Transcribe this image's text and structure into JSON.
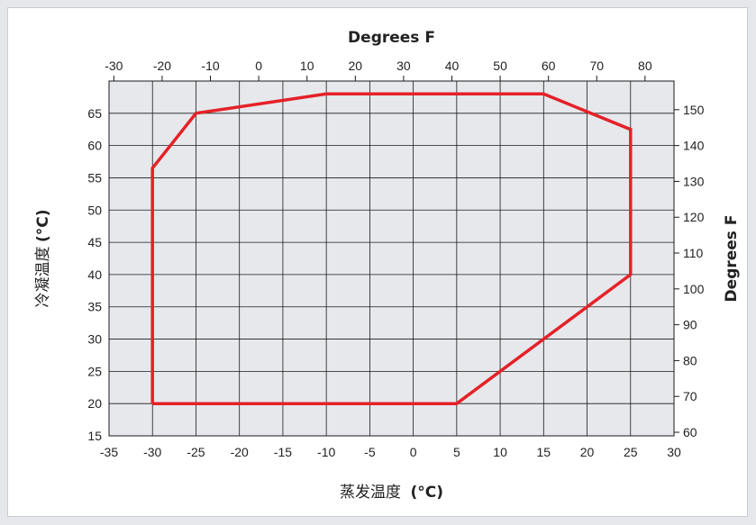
{
  "colors": {
    "page_background": "#e5e7ea",
    "plot_background": "#e6e8ec",
    "grid": "#1a1a1a",
    "envelope": "#e42228"
  },
  "chart_data": {
    "type": "line",
    "title": "",
    "xlabel": "蒸发温度",
    "xlabel_unit": "(°C)",
    "ylabel": "冷凝温度",
    "ylabel_unit": "(°C)",
    "top_axis_label": "Degrees F",
    "right_axis_label": "Degrees F",
    "grid": true,
    "xlim": [
      -35,
      30
    ],
    "ylim": [
      15,
      70
    ],
    "x_ticks": [
      -35,
      -30,
      -25,
      -20,
      -15,
      -10,
      -5,
      0,
      5,
      10,
      15,
      20,
      25,
      30
    ],
    "y_ticks": [
      15,
      20,
      25,
      30,
      35,
      40,
      45,
      50,
      55,
      60,
      65
    ],
    "top_ticks_f": [
      -30,
      -20,
      -10,
      0,
      10,
      20,
      30,
      40,
      50,
      60,
      70,
      80
    ],
    "right_ticks_f": [
      60,
      70,
      80,
      90,
      100,
      110,
      120,
      130,
      140,
      150
    ],
    "series": [
      {
        "color": "#e42228",
        "closed": true,
        "x": [
          -30,
          -30,
          -25,
          -10,
          15,
          25,
          25,
          5,
          -30
        ],
        "y": [
          20,
          56.5,
          65,
          68,
          68,
          62.5,
          40,
          20,
          20
        ]
      }
    ]
  }
}
